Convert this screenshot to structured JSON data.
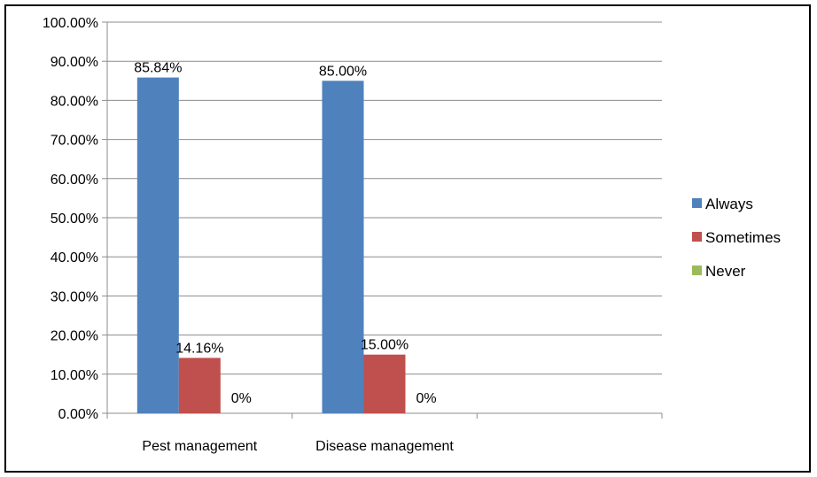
{
  "chart_data": {
    "type": "bar",
    "categories": [
      "Pest management",
      "Disease management",
      ""
    ],
    "series": [
      {
        "name": "Always",
        "values": [
          85.84,
          85.0,
          null
        ],
        "labels": [
          "85.84%",
          "85.00%",
          ""
        ],
        "color": "#4F81BD"
      },
      {
        "name": "Sometimes",
        "values": [
          14.16,
          15.0,
          null
        ],
        "labels": [
          "14.16%",
          "15.00%",
          ""
        ],
        "color": "#C0504D"
      },
      {
        "name": "Never",
        "values": [
          0,
          0,
          null
        ],
        "labels": [
          "0%",
          "0%",
          ""
        ],
        "color": "#9BBB59"
      }
    ],
    "ylim": [
      0,
      100
    ],
    "yticks": [
      "0.00%",
      "10.00%",
      "20.00%",
      "30.00%",
      "40.00%",
      "50.00%",
      "60.00%",
      "70.00%",
      "80.00%",
      "90.00%",
      "100.00%"
    ],
    "title": "",
    "xlabel": "",
    "ylabel": "",
    "grid": true,
    "legend_position": "right"
  }
}
